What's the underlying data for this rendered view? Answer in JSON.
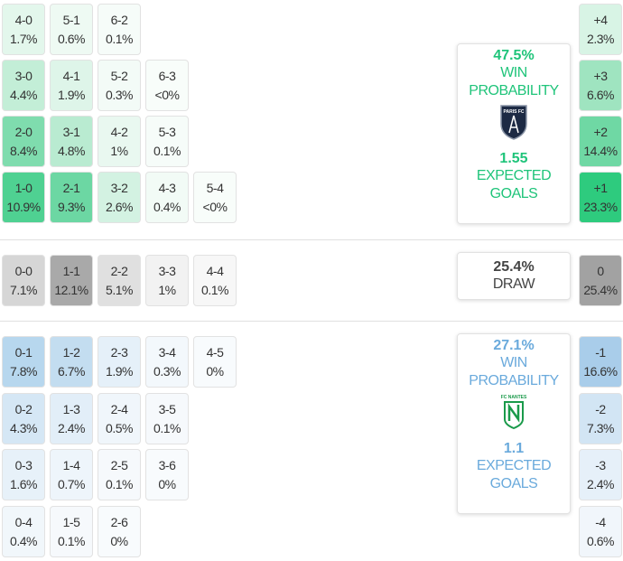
{
  "home": {
    "rows": [
      [
        {
          "score": "4-0",
          "prob": "1.7%",
          "color": "#e3f7ec"
        },
        {
          "score": "5-1",
          "prob": "0.6%",
          "color": "#eefaf3"
        },
        {
          "score": "6-2",
          "prob": "0.1%",
          "color": "#f6fcf9"
        }
      ],
      [
        {
          "score": "3-0",
          "prob": "4.4%",
          "color": "#c3eed7"
        },
        {
          "score": "4-1",
          "prob": "1.9%",
          "color": "#def5e9"
        },
        {
          "score": "5-2",
          "prob": "0.3%",
          "color": "#f3fbf7"
        },
        {
          "score": "6-3",
          "prob": "<0%",
          "color": "#f8fdfa"
        }
      ],
      [
        {
          "score": "2-0",
          "prob": "8.4%",
          "color": "#7fdcae"
        },
        {
          "score": "3-1",
          "prob": "4.8%",
          "color": "#b9ebd1"
        },
        {
          "score": "4-2",
          "prob": "1%",
          "color": "#e9f8f0"
        },
        {
          "score": "5-3",
          "prob": "0.1%",
          "color": "#f6fcf9"
        }
      ],
      [
        {
          "score": "1-0",
          "prob": "10.9%",
          "color": "#4fd192"
        },
        {
          "score": "2-1",
          "prob": "9.3%",
          "color": "#6cd7a3"
        },
        {
          "score": "3-2",
          "prob": "2.6%",
          "color": "#d3f2e2"
        },
        {
          "score": "4-3",
          "prob": "0.4%",
          "color": "#f2fbf6"
        },
        {
          "score": "5-4",
          "prob": "<0%",
          "color": "#f8fdfa"
        }
      ]
    ],
    "margins": [
      {
        "diff": "+4",
        "prob": "2.3%",
        "color": "#d8f4e5"
      },
      {
        "diff": "+3",
        "prob": "6.6%",
        "color": "#9fe4c0"
      },
      {
        "diff": "+2",
        "prob": "14.4%",
        "color": "#6fd8a4"
      },
      {
        "diff": "+1",
        "prob": "23.3%",
        "color": "#2ecb7e"
      }
    ],
    "summary": {
      "win_pct": "47.5%",
      "win_label": "WIN PROBABILITY",
      "logo_text": "PARIS FC",
      "xg": "1.55",
      "xg_label": "EXPECTED GOALS",
      "color": "#1fc47a"
    }
  },
  "draw": {
    "rows": [
      [
        {
          "score": "0-0",
          "prob": "7.1%",
          "color": "#d6d6d6"
        },
        {
          "score": "1-1",
          "prob": "12.1%",
          "color": "#a9a9a9"
        },
        {
          "score": "2-2",
          "prob": "5.1%",
          "color": "#e0e0e0"
        },
        {
          "score": "3-3",
          "prob": "1%",
          "color": "#f2f2f2"
        },
        {
          "score": "4-4",
          "prob": "0.1%",
          "color": "#f7f7f7"
        }
      ]
    ],
    "margins": [
      {
        "diff": "0",
        "prob": "25.4%",
        "color": "#a2a2a2"
      }
    ],
    "summary": {
      "pct": "25.4%",
      "label": "DRAW",
      "color": "#444444"
    }
  },
  "away": {
    "rows": [
      [
        {
          "score": "0-1",
          "prob": "7.8%",
          "color": "#b7d7ee"
        },
        {
          "score": "1-2",
          "prob": "6.7%",
          "color": "#c3ddf0"
        },
        {
          "score": "2-3",
          "prob": "1.9%",
          "color": "#e5f0f9"
        },
        {
          "score": "3-4",
          "prob": "0.3%",
          "color": "#f3f8fc"
        },
        {
          "score": "4-5",
          "prob": "0%",
          "color": "#f8fbfd"
        }
      ],
      [
        {
          "score": "0-2",
          "prob": "4.3%",
          "color": "#d5e7f5"
        },
        {
          "score": "1-3",
          "prob": "2.4%",
          "color": "#e2eef8"
        },
        {
          "score": "2-4",
          "prob": "0.5%",
          "color": "#f0f6fb"
        },
        {
          "score": "3-5",
          "prob": "0.1%",
          "color": "#f6f9fc"
        }
      ],
      [
        {
          "score": "0-3",
          "prob": "1.6%",
          "color": "#e7f1f9"
        },
        {
          "score": "1-4",
          "prob": "0.7%",
          "color": "#eef5fb"
        },
        {
          "score": "2-5",
          "prob": "0.1%",
          "color": "#f6f9fc"
        },
        {
          "score": "3-6",
          "prob": "0%",
          "color": "#f8fbfd"
        }
      ],
      [
        {
          "score": "0-4",
          "prob": "0.4%",
          "color": "#f1f7fb"
        },
        {
          "score": "1-5",
          "prob": "0.1%",
          "color": "#f6f9fc"
        },
        {
          "score": "2-6",
          "prob": "0%",
          "color": "#f8fbfd"
        }
      ]
    ],
    "margins": [
      {
        "diff": "-1",
        "prob": "16.6%",
        "color": "#a9cdea"
      },
      {
        "diff": "-2",
        "prob": "7.3%",
        "color": "#d2e5f4"
      },
      {
        "diff": "-3",
        "prob": "2.4%",
        "color": "#e6f0f9"
      },
      {
        "diff": "-4",
        "prob": "0.6%",
        "color": "#f1f6fb"
      }
    ],
    "summary": {
      "win_pct": "27.1%",
      "win_label": "WIN PROBABILITY",
      "logo_text": "FC NANTES",
      "xg": "1.1",
      "xg_label": "EXPECTED GOALS",
      "color": "#6aaadc"
    }
  }
}
